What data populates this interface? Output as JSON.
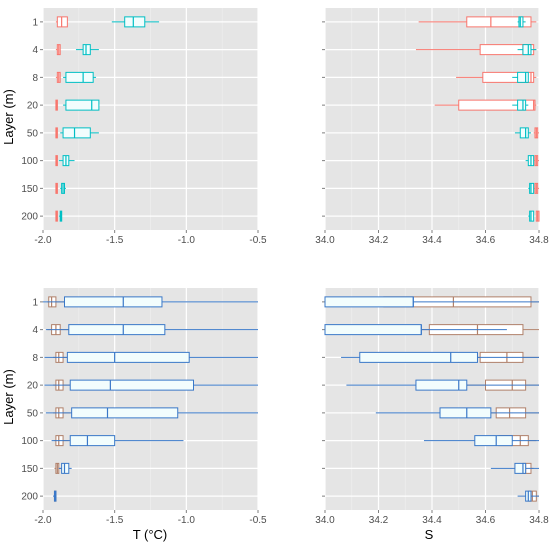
{
  "figure": {
    "ylabel_left": "Layer (m)",
    "xlabel_left": "T (°C)",
    "xlabel_right": "S"
  },
  "colors": {
    "panel_bg": "#e5e5e5",
    "grid": "#ffffff",
    "red": "#f8766d",
    "teal": "#00bfc4",
    "blue": "#3a78c8",
    "brown": "#b0806a",
    "box_fill": "#ffffff",
    "box_fill_light": "#f2fdfd"
  },
  "chart_data": [
    {
      "type": "boxplot",
      "panel": "top-left",
      "categories": [
        "1",
        "4",
        "8",
        "20",
        "50",
        "100",
        "150",
        "200"
      ],
      "xlim": [
        -2.0,
        -0.5
      ],
      "xticks": [
        "-2.0",
        "-1.5",
        "-1.0",
        "-0.5"
      ],
      "groups": [
        {
          "color": "red",
          "boxes": [
            [
              -1.91,
              -1.9,
              -1.87,
              -1.83,
              -1.83
            ],
            [
              -1.91,
              -1.9,
              -1.89,
              -1.88,
              -1.88
            ],
            [
              -1.91,
              -1.9,
              -1.89,
              -1.88,
              -1.88
            ],
            [
              -1.91,
              -1.91,
              -1.905,
              -1.9,
              -1.9
            ],
            [
              -1.91,
              -1.91,
              -1.905,
              -1.9,
              -1.9
            ],
            [
              -1.91,
              -1.91,
              -1.905,
              -1.9,
              -1.9
            ],
            [
              -1.91,
              -1.91,
              -1.905,
              -1.9,
              -1.9
            ],
            [
              -1.91,
              -1.91,
              -1.905,
              -1.9,
              -1.9
            ]
          ]
        },
        {
          "color": "teal",
          "boxes": [
            [
              -1.52,
              -1.43,
              -1.37,
              -1.29,
              -1.19
            ],
            [
              -1.77,
              -1.72,
              -1.7,
              -1.67,
              -1.61
            ],
            [
              -1.86,
              -1.84,
              -1.72,
              -1.65,
              -1.63
            ],
            [
              -1.86,
              -1.84,
              -1.66,
              -1.61,
              -1.61
            ],
            [
              -1.88,
              -1.86,
              -1.78,
              -1.67,
              -1.61
            ],
            [
              -1.89,
              -1.86,
              -1.84,
              -1.82,
              -1.78
            ],
            [
              -1.88,
              -1.87,
              -1.86,
              -1.85,
              -1.84
            ],
            [
              -1.89,
              -1.88,
              -1.875,
              -1.87,
              -1.87
            ]
          ]
        }
      ]
    },
    {
      "type": "boxplot",
      "panel": "top-right",
      "categories": [
        "1",
        "4",
        "8",
        "20",
        "50",
        "100",
        "150",
        "200"
      ],
      "xlim": [
        34.0,
        34.8
      ],
      "xticks": [
        "34.0",
        "34.2",
        "34.4",
        "34.6",
        "34.8"
      ],
      "groups": [
        {
          "color": "red",
          "boxes": [
            [
              34.35,
              34.53,
              34.62,
              34.77,
              34.79
            ],
            [
              34.34,
              34.58,
              34.74,
              34.78,
              34.79
            ],
            [
              34.49,
              34.59,
              34.77,
              34.78,
              34.79
            ],
            [
              34.41,
              34.5,
              34.78,
              34.785,
              34.79
            ],
            [
              34.78,
              34.785,
              34.79,
              34.795,
              34.8
            ],
            [
              34.78,
              34.785,
              34.79,
              34.795,
              34.8
            ],
            [
              34.78,
              34.785,
              34.79,
              34.795,
              34.8
            ],
            [
              34.79,
              34.79,
              34.795,
              34.8,
              34.8
            ]
          ]
        },
        {
          "color": "teal",
          "boxes": [
            [
              34.72,
              34.725,
              34.73,
              34.74,
              34.75
            ],
            [
              34.72,
              34.74,
              34.76,
              34.77,
              34.79
            ],
            [
              34.7,
              34.72,
              34.75,
              34.76,
              34.76
            ],
            [
              34.7,
              34.72,
              34.74,
              34.75,
              34.76
            ],
            [
              34.71,
              34.73,
              34.75,
              34.76,
              34.77
            ],
            [
              34.75,
              34.76,
              34.77,
              34.78,
              34.78
            ],
            [
              34.76,
              34.765,
              34.77,
              34.78,
              34.78
            ],
            [
              34.76,
              34.765,
              34.77,
              34.78,
              34.78
            ]
          ]
        }
      ]
    },
    {
      "type": "boxplot",
      "panel": "bottom-left",
      "categories": [
        "1",
        "4",
        "8",
        "20",
        "50",
        "100",
        "150",
        "200"
      ],
      "xlim": [
        -2.0,
        -0.5
      ],
      "xticks": [
        "-2.0",
        "-1.5",
        "-1.0",
        "-0.5"
      ],
      "groups": [
        {
          "color": "brown",
          "boxes": [
            [
              -1.97,
              -1.96,
              -1.94,
              -1.91,
              -1.84
            ],
            [
              -1.97,
              -1.94,
              -1.91,
              -1.88,
              -1.78
            ],
            [
              -1.93,
              -1.91,
              -1.89,
              -1.86,
              -1.82
            ],
            [
              -1.93,
              -1.91,
              -1.89,
              -1.86,
              -1.81
            ],
            [
              -1.93,
              -1.91,
              -1.89,
              -1.86,
              -1.81
            ],
            [
              -1.92,
              -1.91,
              -1.89,
              -1.86,
              -1.82
            ],
            [
              -1.92,
              -1.91,
              -1.9,
              -1.89,
              -1.87
            ],
            [
              -1.92,
              -1.92,
              -1.915,
              -1.91,
              -1.91
            ]
          ]
        },
        {
          "color": "blue",
          "boxes": [
            [
              -2.0,
              -1.85,
              -1.44,
              -1.17,
              -0.5
            ],
            [
              -1.98,
              -1.82,
              -1.44,
              -1.15,
              -0.5
            ],
            [
              -1.99,
              -1.83,
              -1.5,
              -0.98,
              -0.5
            ],
            [
              -1.99,
              -1.81,
              -1.53,
              -0.95,
              -0.5
            ],
            [
              -1.98,
              -1.8,
              -1.55,
              -1.06,
              -0.5
            ],
            [
              -1.94,
              -1.81,
              -1.69,
              -1.5,
              -1.02
            ],
            [
              -1.89,
              -1.87,
              -1.85,
              -1.82,
              -1.8
            ],
            [
              -1.93,
              -1.92,
              -1.915,
              -1.91,
              -1.91
            ]
          ]
        }
      ]
    },
    {
      "type": "boxplot",
      "panel": "bottom-right",
      "categories": [
        "1",
        "4",
        "8",
        "20",
        "50",
        "100",
        "150",
        "200"
      ],
      "xlim": [
        34.0,
        34.8
      ],
      "xticks": [
        "34.0",
        "34.2",
        "34.4",
        "34.6",
        "34.8"
      ],
      "groups": [
        {
          "color": "brown",
          "boxes": [
            [
              34.0,
              34.22,
              34.48,
              34.77,
              34.8
            ],
            [
              34.28,
              34.39,
              34.57,
              34.74,
              34.8
            ],
            [
              34.46,
              34.58,
              34.68,
              34.74,
              34.8
            ],
            [
              34.52,
              34.6,
              34.7,
              34.75,
              34.8
            ],
            [
              34.55,
              34.64,
              34.69,
              34.75,
              34.8
            ],
            [
              34.58,
              34.65,
              34.73,
              34.76,
              34.79
            ],
            [
              34.72,
              34.74,
              34.75,
              34.77,
              34.78
            ],
            [
              34.75,
              34.76,
              34.775,
              34.79,
              34.8
            ]
          ]
        },
        {
          "color": "blue",
          "boxes": [
            [
              34.0,
              34.0,
              34.33,
              34.33,
              34.8
            ],
            [
              34.0,
              34.0,
              34.36,
              34.36,
              34.68
            ],
            [
              34.06,
              34.13,
              34.47,
              34.57,
              34.8
            ],
            [
              34.08,
              34.34,
              34.5,
              34.53,
              34.8
            ],
            [
              34.19,
              34.43,
              34.53,
              34.62,
              34.8
            ],
            [
              34.37,
              34.56,
              34.64,
              34.7,
              34.8
            ],
            [
              34.62,
              34.71,
              34.74,
              34.75,
              34.8
            ],
            [
              34.72,
              34.75,
              34.76,
              34.77,
              34.8
            ]
          ]
        }
      ]
    }
  ]
}
